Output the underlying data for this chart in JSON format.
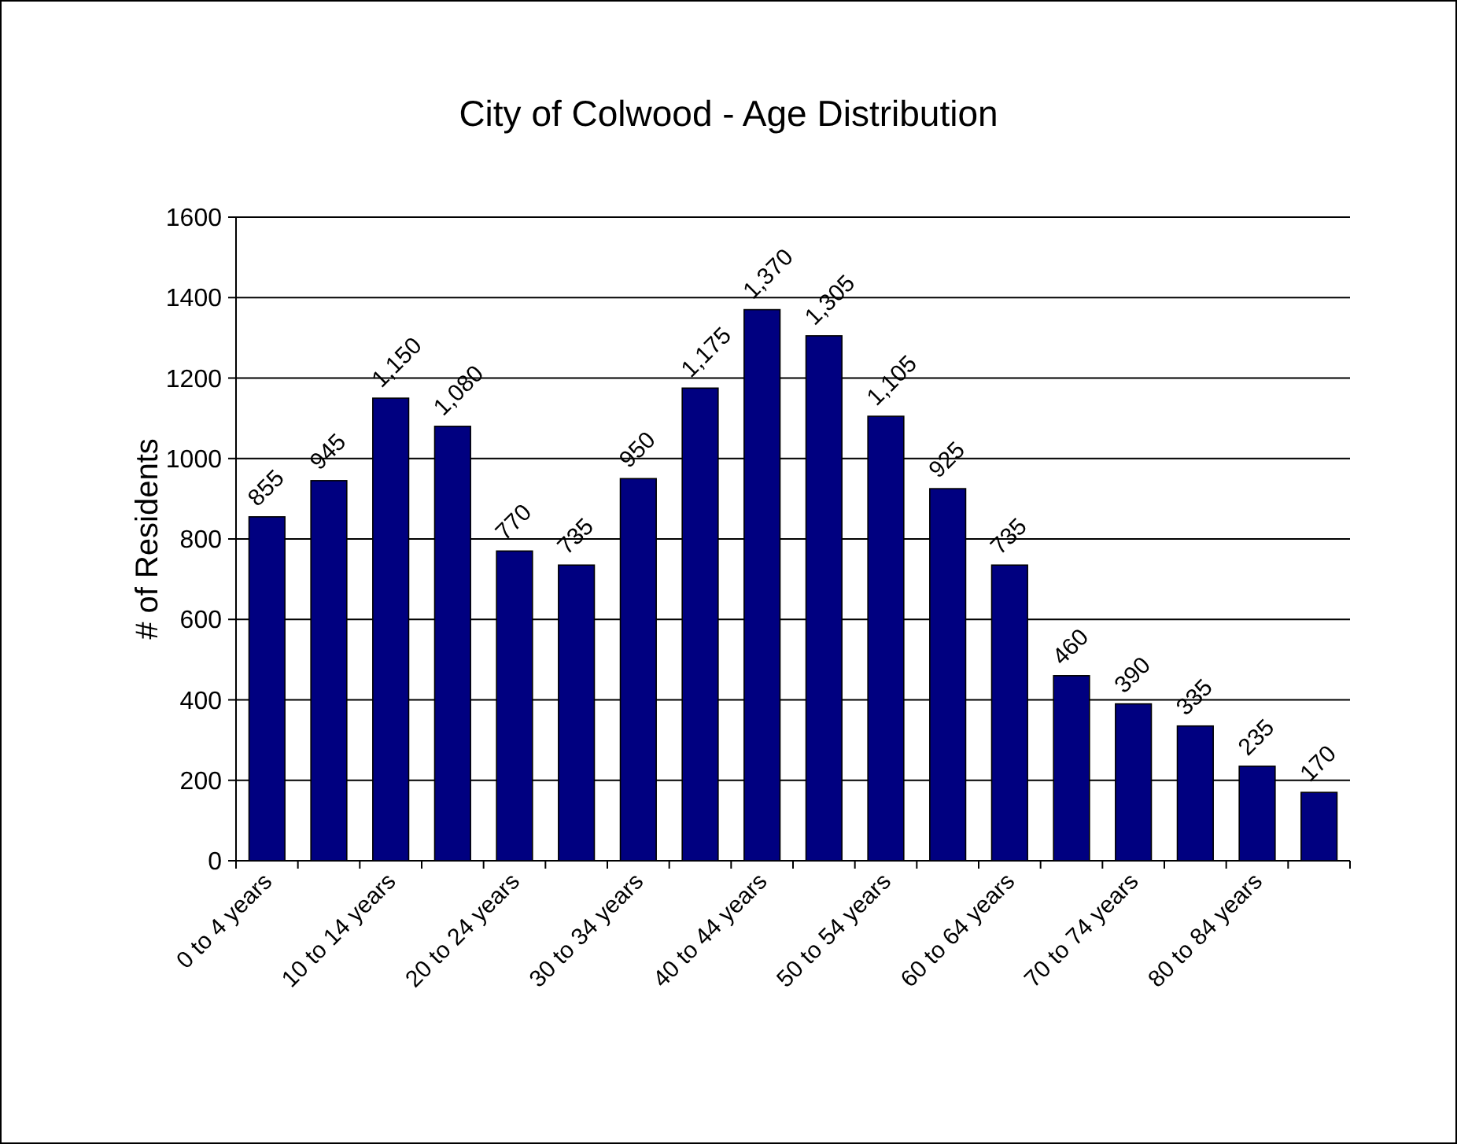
{
  "chart_data": {
    "type": "bar",
    "title": "City of Colwood - Age Distribution",
    "ylabel": "# of Residents",
    "categories": [
      "0 to 4 years",
      null,
      "10 to 14 years",
      null,
      "20 to 24 years",
      null,
      "30 to 34 years",
      null,
      "40 to 44 years",
      null,
      "50 to 54 years",
      null,
      "60 to 64 years",
      null,
      "70 to 74 years",
      null,
      "80 to 84 years",
      null
    ],
    "values": [
      855,
      945,
      1150,
      1080,
      770,
      735,
      950,
      1175,
      1370,
      1305,
      1105,
      925,
      735,
      460,
      390,
      335,
      235,
      170
    ],
    "value_labels": [
      "855",
      "945",
      "1,150",
      "1,080",
      "770",
      "735",
      "950",
      "1,175",
      "1,370",
      "1,305",
      "1,105",
      "925",
      "735",
      "460",
      "390",
      "335",
      "235",
      "170"
    ],
    "color": "#000080",
    "ylim": [
      0,
      1600
    ],
    "yticks": [
      0,
      200,
      400,
      600,
      800,
      1000,
      1200,
      1400,
      1600
    ],
    "grid": "y"
  }
}
